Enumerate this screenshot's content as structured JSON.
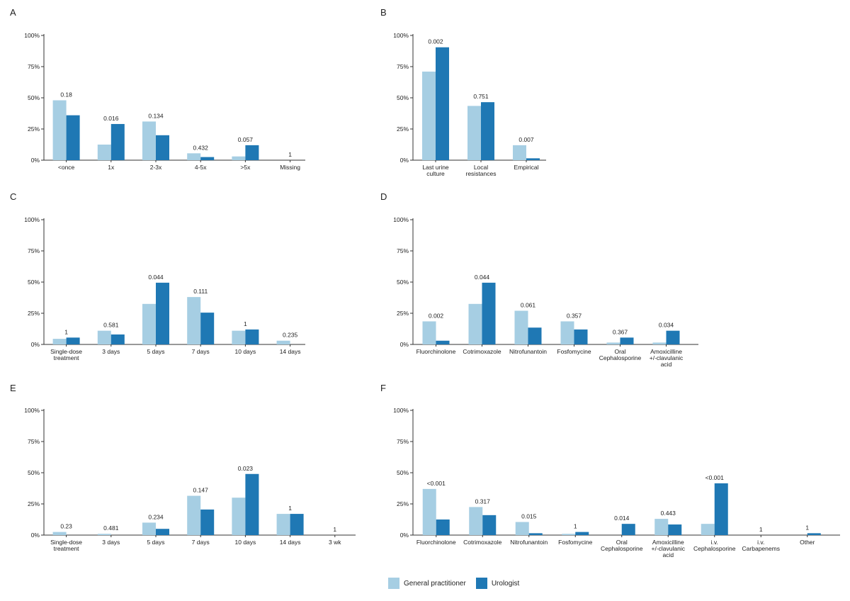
{
  "colors": {
    "gp": "#a6cee3",
    "uro": "#1f78b4",
    "axis": "#333333",
    "text": "#222222"
  },
  "legend": {
    "gp": "General practitioner",
    "uro": "Urologist"
  },
  "chart_data": [
    {
      "panel": "A",
      "type": "bar",
      "ylim": [
        0,
        100
      ],
      "yticks": [
        "0%",
        "25%",
        "50%",
        "75%",
        "100%"
      ],
      "categories": [
        [
          "<once"
        ],
        [
          "1x"
        ],
        [
          "2-3x"
        ],
        [
          "4-5x"
        ],
        [
          ">5x"
        ],
        [
          "Missing"
        ]
      ],
      "series": [
        {
          "name": "General practitioner",
          "values": [
            48,
            12.5,
            31,
            5.5,
            3,
            0
          ]
        },
        {
          "name": "Urologist",
          "values": [
            36,
            29,
            20,
            2.5,
            12,
            0
          ]
        }
      ],
      "pvalues": [
        "0.18",
        "0.016",
        "0.134",
        "0.432",
        "0.057",
        "1"
      ]
    },
    {
      "panel": "B",
      "type": "bar",
      "ylim": [
        0,
        100
      ],
      "yticks": [
        "0%",
        "25%",
        "50%",
        "75%",
        "100%"
      ],
      "categories": [
        [
          "Last urine",
          "culture"
        ],
        [
          "Local",
          "resistances"
        ],
        [
          "Empirical"
        ]
      ],
      "series": [
        {
          "name": "General practitioner",
          "values": [
            71,
            43.5,
            12
          ]
        },
        {
          "name": "Urologist",
          "values": [
            90.5,
            46.5,
            1.5
          ]
        }
      ],
      "pvalues": [
        "0.002",
        "0.751",
        "0.007"
      ]
    },
    {
      "panel": "C",
      "type": "bar",
      "ylim": [
        0,
        100
      ],
      "yticks": [
        "0%",
        "25%",
        "50%",
        "75%",
        "100%"
      ],
      "categories": [
        [
          "Single-dose",
          "treatment"
        ],
        [
          "3 days"
        ],
        [
          "5 days"
        ],
        [
          "7 days"
        ],
        [
          "10 days"
        ],
        [
          "14 days"
        ]
      ],
      "series": [
        {
          "name": "General practitioner",
          "values": [
            4.5,
            11,
            32.5,
            38,
            11,
            3
          ]
        },
        {
          "name": "Urologist",
          "values": [
            5.5,
            8,
            49.5,
            25.5,
            12,
            0
          ]
        }
      ],
      "pvalues": [
        "1",
        "0.581",
        "0.044",
        "0.111",
        "1",
        "0.235"
      ]
    },
    {
      "panel": "D",
      "type": "bar",
      "ylim": [
        0,
        100
      ],
      "yticks": [
        "0%",
        "25%",
        "50%",
        "75%",
        "100%"
      ],
      "categories": [
        [
          "Fluorchinolone"
        ],
        [
          "Cotrimoxazole"
        ],
        [
          "Nitrofunantoin"
        ],
        [
          "Fosfomycine"
        ],
        [
          "Oral",
          "Cephalosporine"
        ],
        [
          "Amoxicilline",
          "+/-clavulanic",
          "acid"
        ]
      ],
      "series": [
        {
          "name": "General practitioner",
          "values": [
            18.5,
            32.5,
            27,
            18.5,
            1.5,
            1.5
          ]
        },
        {
          "name": "Urologist",
          "values": [
            3,
            49.5,
            13.5,
            12,
            5.5,
            11
          ]
        }
      ],
      "pvalues": [
        "0.002",
        "0.044",
        "0.061",
        "0.357",
        "0.367",
        "0.034"
      ]
    },
    {
      "panel": "E",
      "type": "bar",
      "ylim": [
        0,
        100
      ],
      "yticks": [
        "0%",
        "25%",
        "50%",
        "75%",
        "100%"
      ],
      "categories": [
        [
          "Single-dose",
          "treatment"
        ],
        [
          "3 days"
        ],
        [
          "5 days"
        ],
        [
          "7 days"
        ],
        [
          "10 days"
        ],
        [
          "14 days"
        ],
        [
          "3 wk"
        ]
      ],
      "series": [
        {
          "name": "General practitioner",
          "values": [
            2.5,
            1,
            10,
            31.5,
            30,
            17,
            0
          ]
        },
        {
          "name": "Urologist",
          "values": [
            0,
            0,
            5,
            20.5,
            49,
            17,
            0
          ]
        }
      ],
      "pvalues": [
        "0.23",
        "0.481",
        "0.234",
        "0.147",
        "0.023",
        "1",
        "1"
      ]
    },
    {
      "panel": "F",
      "type": "bar",
      "ylim": [
        0,
        100
      ],
      "yticks": [
        "0%",
        "25%",
        "50%",
        "75%",
        "100%"
      ],
      "categories": [
        [
          "Fluorchinolone"
        ],
        [
          "Cotrimoxazole"
        ],
        [
          "Nitrofunantoin"
        ],
        [
          "Fosfomycine"
        ],
        [
          "Oral",
          "Cephalosporine"
        ],
        [
          "Amoxicilline",
          "+/-clavulanic",
          "acid"
        ],
        [
          "i.v.",
          "Cephalosporine"
        ],
        [
          "i.v.",
          "Carbapenems"
        ],
        [
          "Other"
        ]
      ],
      "series": [
        {
          "name": "General practitioner",
          "values": [
            37,
            22.5,
            10.5,
            1,
            0,
            13,
            9,
            0,
            0
          ]
        },
        {
          "name": "Urologist",
          "values": [
            12.5,
            16,
            1.5,
            2.5,
            9,
            8.5,
            41.5,
            0,
            1.5
          ]
        }
      ],
      "pvalues": [
        "<0.001",
        "0.317",
        "0.015",
        "1",
        "0.014",
        "0.443",
        "<0.001",
        "1",
        "1"
      ]
    }
  ]
}
